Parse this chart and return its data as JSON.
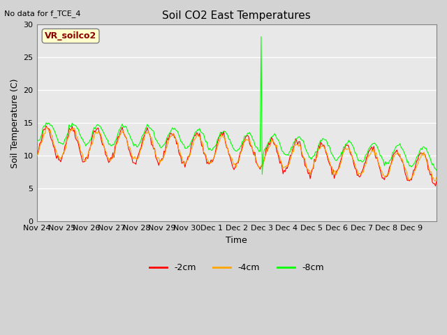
{
  "title": "Soil CO2 East Temperatures",
  "subtitle": "No data for f_TCE_4",
  "ylabel": "Soil Temperature (C)",
  "xlabel": "Time",
  "ylim": [
    0,
    30
  ],
  "yticks": [
    0,
    5,
    10,
    15,
    20,
    25,
    30
  ],
  "plot_bg": "#e8e8e8",
  "fig_bg": "#d3d3d3",
  "annotation_text": "VR_soilco2",
  "annotation_color": "#8B0000",
  "annotation_bg": "#ffffcc",
  "line_colors": {
    "2cm": "#ff0000",
    "4cm": "#ffa500",
    "8cm": "#00ff00"
  },
  "legend_labels": [
    "-2cm",
    "-4cm",
    "-8cm"
  ],
  "legend_colors": [
    "#ff0000",
    "#ffa500",
    "#00ff00"
  ],
  "x_tick_labels": [
    "Nov 24",
    "Nov 25",
    "Nov 26",
    "Nov 27",
    "Nov 28",
    "Nov 29",
    "Nov 30",
    "Dec 1",
    "Dec 2",
    "Dec 3",
    "Dec 4",
    "Dec 5",
    "Dec 6",
    "Dec 7",
    "Dec 8",
    "Dec 9"
  ],
  "n_days": 16
}
